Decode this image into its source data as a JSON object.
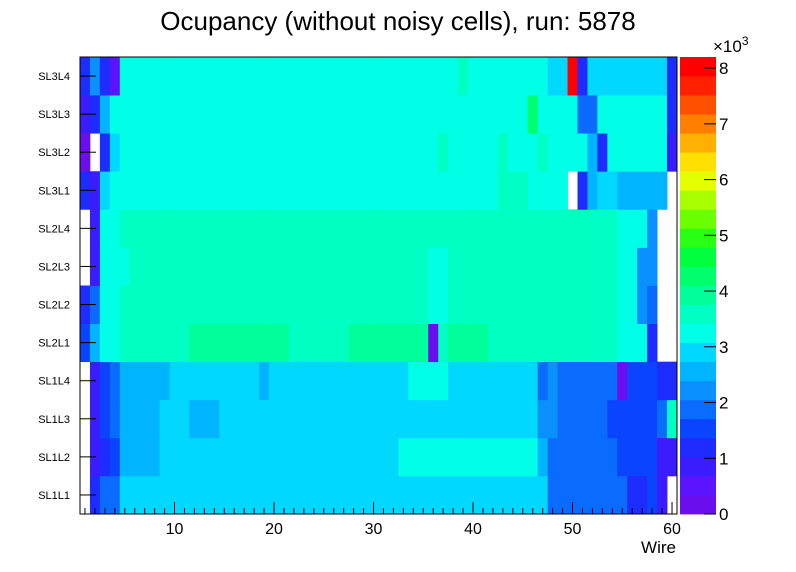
{
  "chart_data": {
    "type": "heatmap",
    "title": "Ocupancy (without noisy cells), run: 5878",
    "xlabel": "Wire",
    "ylabel": "",
    "x_range": [
      0.5,
      60.5
    ],
    "x_ticks": [
      10,
      20,
      30,
      40,
      50,
      60
    ],
    "y_categories": [
      "SL1L1",
      "SL1L2",
      "SL1L3",
      "SL1L4",
      "SL2L1",
      "SL2L2",
      "SL2L3",
      "SL2L4",
      "SL3L1",
      "SL3L2",
      "SL3L3",
      "SL3L4"
    ],
    "z_range": [
      0,
      8200
    ],
    "z_ticks": [
      0,
      1,
      2,
      3,
      4,
      5,
      6,
      7,
      8
    ],
    "z_multiplier_label": "×10",
    "z_multiplier_exponent": "3",
    "grid": false,
    "colorbar_position": "right",
    "rows": [
      {
        "layer": "SL1L1",
        "values": [
          null,
          1200,
          1800,
          1800,
          2800,
          2800,
          2800,
          2800,
          3000,
          3000,
          3000,
          3000,
          3000,
          3000,
          2800,
          2800,
          2800,
          2800,
          2800,
          2800,
          2800,
          3000,
          3000,
          3000,
          2800,
          2800,
          3000,
          3000,
          3000,
          3000,
          3000,
          3000,
          3000,
          3000,
          3000,
          3000,
          3000,
          3000,
          3000,
          2800,
          2800,
          2800,
          3000,
          3000,
          3000,
          3000,
          3000,
          1800,
          1800,
          1800,
          1800,
          1800,
          1800,
          1800,
          1800,
          1200,
          1200,
          1500,
          1000,
          null
        ]
      },
      {
        "layer": "SL1L2",
        "values": [
          null,
          700,
          1200,
          1500,
          2500,
          2500,
          2500,
          2500,
          2900,
          2900,
          2900,
          2900,
          2900,
          2900,
          2900,
          2900,
          2900,
          2900,
          2900,
          2900,
          2900,
          2900,
          2900,
          2900,
          2900,
          2900,
          2900,
          2900,
          2900,
          2900,
          2900,
          2900,
          3100,
          3100,
          3100,
          3100,
          3100,
          3100,
          3100,
          3100,
          3100,
          3100,
          3100,
          3100,
          3100,
          3100,
          2500,
          2000,
          2000,
          2000,
          2000,
          2000,
          2000,
          2000,
          1500,
          1500,
          1500,
          1500,
          1000,
          1000
        ]
      },
      {
        "layer": "SL1L3",
        "values": [
          null,
          900,
          1500,
          2000,
          2500,
          2500,
          2700,
          2700,
          2900,
          2900,
          2900,
          2500,
          2500,
          2500,
          2900,
          2900,
          2900,
          2900,
          2900,
          2900,
          2900,
          2900,
          2900,
          2900,
          2900,
          2900,
          2900,
          2900,
          2900,
          2900,
          2900,
          2900,
          2900,
          2900,
          2900,
          2900,
          2900,
          2900,
          2900,
          2900,
          2900,
          2900,
          2900,
          2900,
          2900,
          2900,
          2200,
          2200,
          2000,
          2000,
          2000,
          2000,
          2000,
          1500,
          1500,
          1500,
          1500,
          1500,
          1800,
          3600
        ]
      },
      {
        "layer": "SL1L4",
        "values": [
          null,
          900,
          1500,
          2000,
          2600,
          2600,
          2600,
          2600,
          2600,
          2800,
          2800,
          2800,
          2800,
          2800,
          2800,
          2800,
          2800,
          2800,
          2600,
          2800,
          2800,
          2800,
          2800,
          2800,
          2800,
          2800,
          2800,
          2800,
          2800,
          2800,
          2800,
          2800,
          2800,
          3100,
          3100,
          3100,
          3100,
          2800,
          2800,
          2800,
          2800,
          2800,
          2800,
          2800,
          2800,
          3000,
          2000,
          2200,
          1800,
          1800,
          1800,
          1800,
          1800,
          2000,
          300,
          1500,
          1500,
          1500,
          1200,
          1200
        ]
      },
      {
        "layer": "SL2L1",
        "values": [
          1700,
          2400,
          3400,
          3400,
          3500,
          3500,
          3500,
          3500,
          3500,
          3500,
          3500,
          3800,
          3800,
          3800,
          3800,
          3800,
          3800,
          3800,
          3800,
          3800,
          3800,
          3600,
          3600,
          3600,
          3600,
          3600,
          3600,
          3800,
          3800,
          3800,
          3800,
          3800,
          3800,
          3800,
          3800,
          200,
          3600,
          3800,
          3800,
          3800,
          3800,
          3600,
          3600,
          3600,
          3600,
          3600,
          3600,
          3600,
          3600,
          3600,
          3600,
          3600,
          3600,
          3600,
          3400,
          3400,
          3400,
          1200,
          null,
          null
        ]
      },
      {
        "layer": "SL2L2",
        "values": [
          1200,
          1800,
          3200,
          3200,
          3500,
          3500,
          3500,
          3500,
          3500,
          3500,
          3500,
          3500,
          3700,
          3700,
          3700,
          3700,
          3700,
          3700,
          3700,
          3700,
          3700,
          3700,
          3700,
          3700,
          3700,
          3700,
          3700,
          3700,
          3700,
          3700,
          3700,
          3700,
          3700,
          3700,
          3700,
          3200,
          3200,
          3700,
          3700,
          3700,
          3700,
          3700,
          3700,
          3700,
          3700,
          3700,
          3700,
          3500,
          3500,
          3500,
          3500,
          3500,
          3500,
          3500,
          3200,
          3200,
          2200,
          1800,
          null,
          null
        ]
      },
      {
        "layer": "SL2L3",
        "values": [
          null,
          800,
          3200,
          3300,
          3300,
          3500,
          3500,
          3500,
          3500,
          3700,
          3700,
          3700,
          3700,
          3700,
          3700,
          3700,
          3700,
          3700,
          3700,
          3700,
          3700,
          3700,
          3700,
          3700,
          3700,
          3700,
          3700,
          3700,
          3700,
          3700,
          3700,
          3700,
          3700,
          3700,
          3700,
          3200,
          3200,
          3700,
          3700,
          3700,
          3700,
          3700,
          3700,
          3700,
          3700,
          3700,
          3700,
          3700,
          3500,
          3500,
          3500,
          3500,
          3500,
          3500,
          3300,
          3300,
          2100,
          2100,
          null,
          null
        ]
      },
      {
        "layer": "SL2L4",
        "values": [
          null,
          900,
          3300,
          3300,
          3500,
          3500,
          3500,
          3500,
          3500,
          3500,
          3500,
          3500,
          3700,
          3700,
          3700,
          3700,
          3700,
          3500,
          3500,
          3500,
          3500,
          3500,
          3500,
          3700,
          3700,
          3700,
          3700,
          3700,
          3700,
          3700,
          3700,
          3700,
          3700,
          3500,
          3500,
          3500,
          3500,
          3500,
          3500,
          3500,
          3500,
          3500,
          3500,
          3500,
          3500,
          3700,
          3700,
          3700,
          3500,
          3500,
          3500,
          3500,
          3500,
          3500,
          3300,
          3300,
          3300,
          2200,
          null,
          null
        ]
      },
      {
        "layer": "SL3L1",
        "values": [
          1200,
          900,
          2900,
          3200,
          3200,
          3200,
          3300,
          3300,
          3300,
          3300,
          3300,
          3300,
          3300,
          3300,
          3300,
          3300,
          3300,
          3300,
          3300,
          3300,
          3300,
          3300,
          3300,
          3300,
          3300,
          3300,
          3300,
          3300,
          3300,
          3300,
          3300,
          3300,
          3300,
          3300,
          3300,
          3300,
          3300,
          3300,
          3300,
          3300,
          3300,
          3300,
          3700,
          3700,
          3700,
          3300,
          3300,
          3300,
          3300,
          null,
          1200,
          2500,
          2900,
          2900,
          2500,
          2500,
          2500,
          2500,
          2500,
          null
        ]
      },
      {
        "layer": "SL3L2",
        "values": [
          300,
          null,
          1200,
          2900,
          3300,
          3300,
          3300,
          3300,
          3300,
          3300,
          3300,
          3300,
          3300,
          3300,
          3300,
          3300,
          3300,
          3300,
          3300,
          3300,
          3300,
          3300,
          3300,
          3300,
          3300,
          3300,
          3300,
          3300,
          3300,
          3300,
          3300,
          3300,
          3300,
          3300,
          3300,
          3300,
          3600,
          3300,
          3300,
          3300,
          3300,
          3300,
          3600,
          3300,
          3300,
          3300,
          3600,
          3300,
          3300,
          3300,
          3300,
          2700,
          1200,
          3100,
          3100,
          3100,
          3100,
          3100,
          3100,
          900
        ]
      },
      {
        "layer": "SL3L3",
        "values": [
          900,
          1100,
          2700,
          3100,
          3100,
          3300,
          3300,
          3300,
          3300,
          3300,
          3300,
          3300,
          3300,
          3300,
          3300,
          3300,
          3300,
          3300,
          3300,
          3300,
          3300,
          3300,
          3300,
          3300,
          3300,
          3300,
          3300,
          3300,
          3300,
          3300,
          3300,
          3300,
          3300,
          3300,
          3300,
          3300,
          3300,
          3300,
          3300,
          3300,
          3300,
          3300,
          3300,
          3300,
          3300,
          4200,
          3300,
          3300,
          3300,
          3300,
          1800,
          1800,
          3100,
          3100,
          3100,
          3100,
          3100,
          3100,
          3100,
          1100
        ]
      },
      {
        "layer": "SL3L4",
        "values": [
          1200,
          2200,
          1100,
          600,
          3100,
          3100,
          3100,
          3100,
          3100,
          3100,
          3100,
          3100,
          3100,
          3100,
          3300,
          3300,
          3300,
          3300,
          3300,
          3300,
          3300,
          3300,
          3300,
          3300,
          3300,
          3300,
          3300,
          3300,
          3300,
          3300,
          3300,
          3300,
          3300,
          3300,
          3300,
          3300,
          3300,
          3300,
          3700,
          3300,
          3300,
          3300,
          3300,
          3300,
          3300,
          3300,
          3300,
          2900,
          2900,
          8200,
          1100,
          3000,
          3000,
          3000,
          3000,
          3000,
          3000,
          3000,
          2800,
          1100
        ]
      }
    ]
  }
}
